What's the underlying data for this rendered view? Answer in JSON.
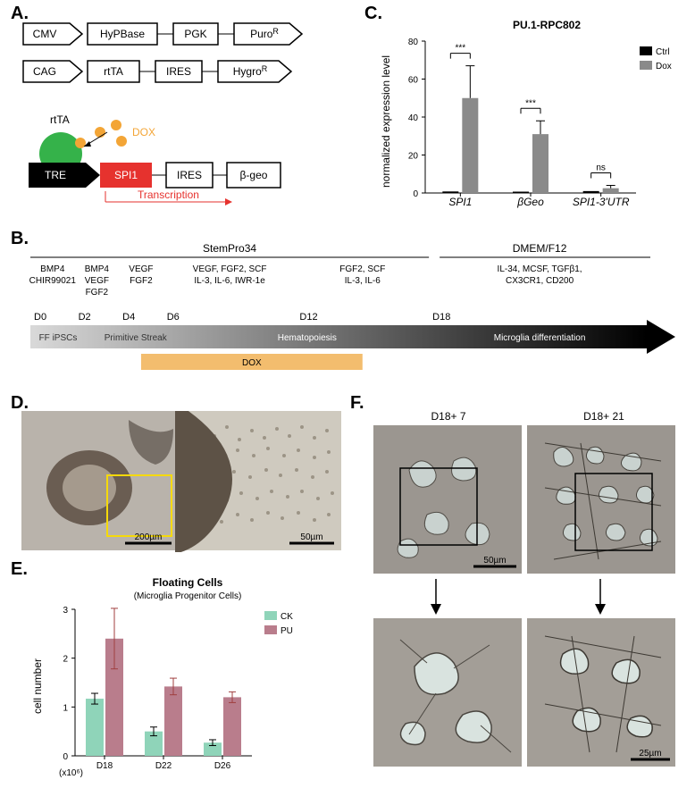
{
  "panelA": {
    "constructs": [
      {
        "parts": [
          "CMV",
          "HyPBase",
          "PGK",
          "PuroR"
        ],
        "shapes": [
          "promoter",
          "box",
          "box",
          "promoter"
        ],
        "super": [
          null,
          null,
          null,
          "R"
        ]
      },
      {
        "parts": [
          "CAG",
          "rtTA",
          "IRES",
          "HygroR"
        ],
        "shapes": [
          "promoter",
          "box",
          "box",
          "promoter"
        ],
        "super": [
          null,
          null,
          null,
          "R"
        ]
      }
    ],
    "inducible": {
      "rtTA": "rtTA",
      "dox": "DOX",
      "tre": "TRE",
      "spi1": "SPI1",
      "ires": "IRES",
      "bgeo": "β-geo",
      "transcription": "Transcription"
    },
    "colors": {
      "rtTA": "#35b24a",
      "dox": "#f3a536",
      "tre": "#000",
      "spi1": "#e6322e",
      "transcription": "#e6322e"
    }
  },
  "panelB": {
    "media": [
      {
        "label": "StemPro34",
        "span": [
          0,
          18
        ]
      },
      {
        "label": "DMEM/F12",
        "span": [
          18,
          28
        ]
      }
    ],
    "factors": [
      {
        "span": [
          0,
          2
        ],
        "lines": [
          "BMP4",
          "CHIR99021"
        ]
      },
      {
        "span": [
          2,
          4
        ],
        "lines": [
          "BMP4",
          "VEGF",
          "FGF2"
        ]
      },
      {
        "span": [
          4,
          6
        ],
        "lines": [
          "VEGF",
          "FGF2"
        ]
      },
      {
        "span": [
          6,
          12
        ],
        "lines": [
          "VEGF, FGF2, SCF",
          "IL-3, IL-6, IWR-1e"
        ]
      },
      {
        "span": [
          12,
          18
        ],
        "lines": [
          "FGF2, SCF",
          "IL-3, IL-6"
        ]
      },
      {
        "span": [
          18,
          28
        ],
        "lines": [
          "IL-34, MCSF, TGFβ1,",
          "CX3CR1, CD200"
        ]
      }
    ],
    "days": [
      "D0",
      "D2",
      "D4",
      "D6",
      "D12",
      "D18"
    ],
    "dayPos": [
      0,
      2,
      4,
      6,
      12,
      18
    ],
    "stages": [
      {
        "label": "FF iPSCs",
        "span": [
          0,
          2.5
        ]
      },
      {
        "label": "Primitive Streak",
        "span": [
          2.5,
          7
        ]
      },
      {
        "label": "Hematopoiesis",
        "span": [
          7,
          18
        ]
      },
      {
        "label": "Microglia differentiation",
        "span": [
          18,
          28
        ]
      }
    ],
    "doxBar": {
      "label": "DOX",
      "span": [
        5,
        15
      ],
      "color": "#f3bd6e"
    }
  },
  "panelC": {
    "title": "PU.1-RPC802",
    "yLabel": "normalized expression level",
    "yMax": 80,
    "yStep": 20,
    "groups": [
      "SPI1",
      "βGeo",
      "SPI1-3'UTR"
    ],
    "series": [
      {
        "name": "Ctrl",
        "color": "#000",
        "vals": [
          0.8,
          0.7,
          1.0
        ],
        "errs": [
          0.3,
          0.3,
          0.9
        ]
      },
      {
        "name": "Dox",
        "color": "#8a8a8a",
        "vals": [
          50,
          31,
          2.5
        ],
        "errs": [
          17,
          7,
          1.5
        ]
      }
    ],
    "sig": [
      "***",
      "***",
      "ns"
    ]
  },
  "panelD": {
    "scales": [
      "200µm",
      "50µm"
    ]
  },
  "panelE": {
    "title": "Floating Cells",
    "subtitle": "(Microglia Progenitor Cells)",
    "yLabel": "cell number",
    "yUnit": "(x10⁶)",
    "yMax": 3,
    "yStep": 1,
    "groups": [
      "D18",
      "D22",
      "D26"
    ],
    "series": [
      {
        "name": "CK",
        "color": "#8fd4b9",
        "vals": [
          1.17,
          0.5,
          0.27
        ],
        "errs": [
          0.11,
          0.09,
          0.06
        ]
      },
      {
        "name": "PU",
        "color": "#b97d8c",
        "vals": [
          2.4,
          1.42,
          1.2
        ],
        "errs": [
          0.62,
          0.17,
          0.11
        ]
      }
    ]
  },
  "panelF": {
    "headers": [
      "D18+ 7",
      "D18+ 21"
    ],
    "scales": [
      "50µm",
      "25µm"
    ]
  }
}
